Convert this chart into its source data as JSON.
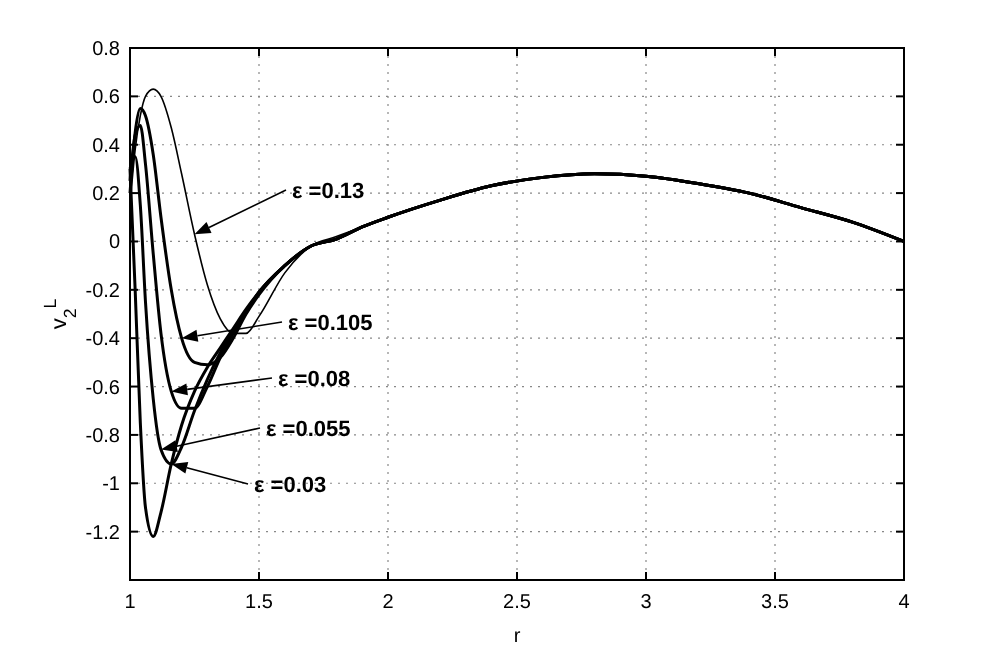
{
  "chart_data": {
    "type": "line",
    "xlabel": "r",
    "ylabel": "v$_{2}$$^{L}$",
    "xlim": [
      1,
      4
    ],
    "ylim": [
      -1.4,
      0.8
    ],
    "xticks": [
      1,
      1.5,
      2,
      2.5,
      3,
      3.5,
      4
    ],
    "yticks": [
      -1.2,
      -1,
      -0.8,
      -0.6,
      -0.4,
      -0.2,
      0,
      0.2,
      0.4,
      0.6,
      0.8
    ],
    "grid": true,
    "marker": "none",
    "line_style": "solid",
    "x": [
      1,
      1.02,
      1.04,
      1.06,
      1.09,
      1.12,
      1.16,
      1.2,
      1.25,
      1.3,
      1.35,
      1.4,
      1.45,
      1.5,
      1.6,
      1.7,
      1.8,
      1.9,
      2,
      2.2,
      2.4,
      2.6,
      2.8,
      3,
      3.2,
      3.4,
      3.6,
      3.8,
      4
    ],
    "series": [
      {
        "color": "#000000",
        "values": [
          0.15,
          0.38,
          0.52,
          0.6,
          0.63,
          0.6,
          0.47,
          0.28,
          0.03,
          -0.18,
          -0.32,
          -0.38,
          -0.38,
          -0.31,
          -0.13,
          -0.02,
          0.02,
          0.06,
          0.1,
          0.17,
          0.23,
          0.265,
          0.28,
          0.27,
          0.24,
          0.2,
          0.14,
          0.08,
          0
        ]
      },
      {
        "color": "#000000",
        "values": [
          0.2,
          0.45,
          0.55,
          0.52,
          0.36,
          0.1,
          -0.2,
          -0.4,
          -0.5,
          -0.51,
          -0.48,
          -0.4,
          -0.3,
          -0.22,
          -0.1,
          -0.02,
          0.01,
          0.06,
          0.1,
          0.17,
          0.23,
          0.265,
          0.28,
          0.27,
          0.24,
          0.2,
          0.14,
          0.08,
          0
        ]
      },
      {
        "color": "#000000",
        "values": [
          0.25,
          0.44,
          0.48,
          0.32,
          -0.05,
          -0.38,
          -0.62,
          -0.69,
          -0.69,
          -0.6,
          -0.48,
          -0.38,
          -0.29,
          -0.21,
          -0.1,
          -0.02,
          0.01,
          0.06,
          0.1,
          0.17,
          0.23,
          0.265,
          0.28,
          0.27,
          0.24,
          0.2,
          0.14,
          0.08,
          0
        ]
      },
      {
        "color": "#000000",
        "values": [
          0.3,
          0.35,
          0.15,
          -0.25,
          -0.65,
          -0.86,
          -0.92,
          -0.85,
          -0.7,
          -0.57,
          -0.46,
          -0.37,
          -0.29,
          -0.21,
          -0.1,
          -0.02,
          0.01,
          0.06,
          0.1,
          0.17,
          0.23,
          0.265,
          0.28,
          0.27,
          0.24,
          0.2,
          0.14,
          0.08,
          0
        ]
      },
      {
        "color": "#000000",
        "values": [
          0.3,
          -0.2,
          -0.75,
          -1.1,
          -1.22,
          -1.12,
          -0.92,
          -0.76,
          -0.62,
          -0.52,
          -0.44,
          -0.36,
          -0.28,
          -0.21,
          -0.1,
          -0.02,
          0.01,
          0.06,
          0.1,
          0.17,
          0.23,
          0.265,
          0.28,
          0.27,
          0.24,
          0.2,
          0.14,
          0.08,
          0
        ]
      }
    ],
    "annotations": [
      {
        "text": "ε =0.13",
        "x": 1.25,
        "y": 0.03
      },
      {
        "text": "ε =0.105",
        "x": 1.2,
        "y": -0.4
      },
      {
        "text": "ε =0.08",
        "x": 1.16,
        "y": -0.62
      },
      {
        "text": "ε =0.055",
        "x": 1.12,
        "y": -0.86
      },
      {
        "text": "ε =0.03",
        "x": 1.16,
        "y": -0.92
      }
    ]
  }
}
